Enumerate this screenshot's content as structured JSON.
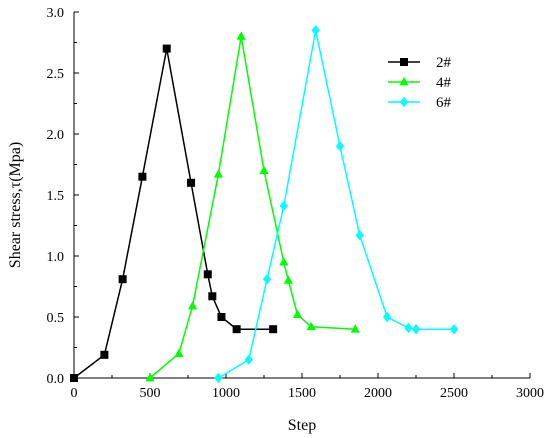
{
  "chart_data": {
    "type": "line",
    "title": "",
    "xlabel": "Step",
    "ylabel": "Shear stress,τ(Mpa)",
    "xlim": [
      0,
      3000
    ],
    "ylim": [
      0.0,
      3.0
    ],
    "xticks": [
      0,
      500,
      1000,
      1500,
      2000,
      2500,
      3000
    ],
    "yticks": [
      0.0,
      0.5,
      1.0,
      1.5,
      2.0,
      2.5,
      3.0
    ],
    "xtick_labels": [
      "0",
      "500",
      "1000",
      "1500",
      "2000",
      "2500",
      "3000"
    ],
    "ytick_labels": [
      "0.0",
      "0.5",
      "1.0",
      "1.5",
      "2.0",
      "2.5",
      "3.0"
    ],
    "grid": false,
    "legend_position": "top-right",
    "series": [
      {
        "name": "2#",
        "color": "#000000",
        "marker": "square",
        "x": [
          0,
          200,
          320,
          450,
          610,
          770,
          880,
          910,
          970,
          1070,
          1310
        ],
        "y": [
          0.0,
          0.19,
          0.81,
          1.65,
          2.7,
          1.6,
          0.85,
          0.67,
          0.5,
          0.4,
          0.4
        ]
      },
      {
        "name": "4#",
        "color": "#00ff00",
        "marker": "triangle",
        "x": [
          500,
          690,
          780,
          950,
          1100,
          1250,
          1380,
          1410,
          1470,
          1560,
          1850
        ],
        "y": [
          0.0,
          0.2,
          0.59,
          1.67,
          2.8,
          1.7,
          0.95,
          0.8,
          0.52,
          0.42,
          0.4
        ]
      },
      {
        "name": "6#",
        "color": "#00ffff",
        "marker": "diamond",
        "x": [
          950,
          1150,
          1270,
          1380,
          1590,
          1750,
          1880,
          2060,
          2200,
          2250,
          2500
        ],
        "y": [
          0.0,
          0.15,
          0.81,
          1.41,
          2.85,
          1.9,
          1.17,
          0.5,
          0.41,
          0.4,
          0.4
        ]
      }
    ]
  }
}
